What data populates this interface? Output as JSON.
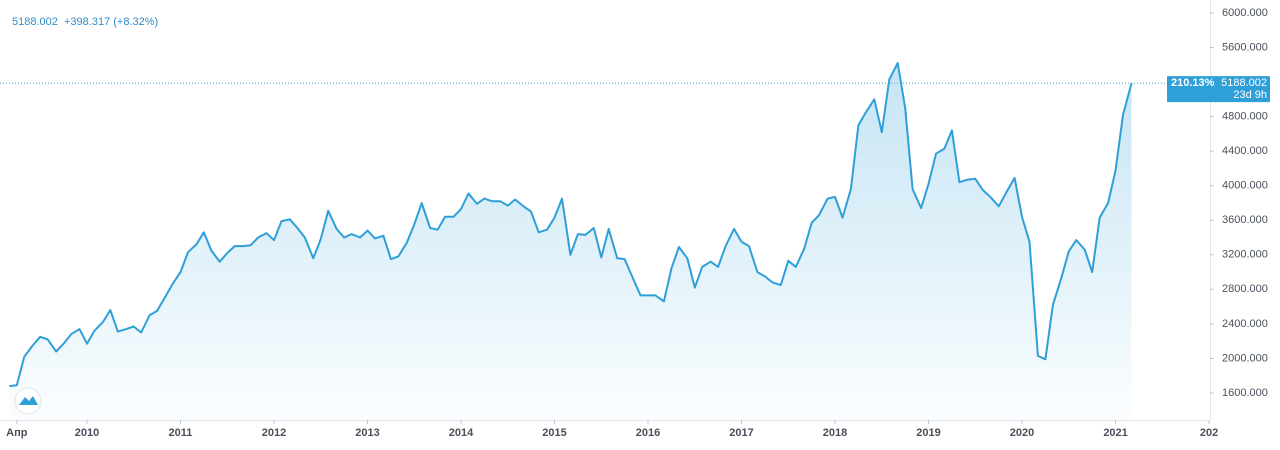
{
  "chart_data": {
    "type": "area",
    "header": {
      "price": "5188.002",
      "change": "+398.317 (+8.32%)"
    },
    "last_label": {
      "percent": "210.13%",
      "price": "5188.002",
      "countdown": "23d 9h"
    },
    "color": "#2f9fd8",
    "xlim": [
      2009.07,
      2022.01
    ],
    "ylim": [
      1287,
      6150
    ],
    "xticks": [
      {
        "value": 2009.25,
        "label": "Апр"
      },
      2010,
      2011,
      2012,
      2013,
      2014,
      2015,
      2016,
      2017,
      2018,
      2019,
      2020,
      2021,
      {
        "value": 2022,
        "label": "202"
      }
    ],
    "yticks": [
      {
        "value": 1600,
        "label": "1600.000"
      },
      {
        "value": 2000,
        "label": "2000.000"
      },
      {
        "value": 2400,
        "label": "2400.000"
      },
      {
        "value": 2800,
        "label": "2800.000"
      },
      {
        "value": 3200,
        "label": "3200.000"
      },
      {
        "value": 3600,
        "label": "3600.000"
      },
      {
        "value": 4000,
        "label": "4000.000"
      },
      {
        "value": 4400,
        "label": "4400.000"
      },
      {
        "value": 4800,
        "label": "4800.000"
      },
      {
        "value": 5200,
        "label": "5200.000"
      },
      {
        "value": 5600,
        "label": "5600.000"
      },
      {
        "value": 6000,
        "label": "6000.000"
      }
    ],
    "x": [
      2009.17,
      2009.25,
      2009.33,
      2009.42,
      2009.5,
      2009.58,
      2009.67,
      2009.75,
      2009.83,
      2009.92,
      2010,
      2010.08,
      2010.17,
      2010.25,
      2010.33,
      2010.42,
      2010.5,
      2010.58,
      2010.67,
      2010.75,
      2010.83,
      2010.92,
      2011,
      2011.08,
      2011.17,
      2011.25,
      2011.33,
      2011.42,
      2011.5,
      2011.58,
      2011.67,
      2011.75,
      2011.83,
      2011.92,
      2012,
      2012.08,
      2012.17,
      2012.25,
      2012.33,
      2012.42,
      2012.5,
      2012.58,
      2012.67,
      2012.75,
      2012.83,
      2012.92,
      2013,
      2013.08,
      2013.17,
      2013.25,
      2013.33,
      2013.42,
      2013.5,
      2013.58,
      2013.67,
      2013.75,
      2013.83,
      2013.92,
      2014,
      2014.08,
      2014.17,
      2014.25,
      2014.33,
      2014.42,
      2014.5,
      2014.58,
      2014.67,
      2014.75,
      2014.83,
      2014.92,
      2015,
      2015.08,
      2015.17,
      2015.25,
      2015.33,
      2015.42,
      2015.5,
      2015.58,
      2015.67,
      2015.75,
      2015.83,
      2015.92,
      2016,
      2016.08,
      2016.17,
      2016.25,
      2016.33,
      2016.42,
      2016.5,
      2016.58,
      2016.67,
      2016.75,
      2016.83,
      2016.92,
      2017,
      2017.08,
      2017.17,
      2017.25,
      2017.33,
      2017.42,
      2017.5,
      2017.58,
      2017.67,
      2017.75,
      2017.83,
      2017.92,
      2018,
      2018.08,
      2018.17,
      2018.25,
      2018.33,
      2018.42,
      2018.5,
      2018.58,
      2018.67,
      2018.75,
      2018.83,
      2018.92,
      2019,
      2019.08,
      2019.17,
      2019.25,
      2019.33,
      2019.42,
      2019.5,
      2019.58,
      2019.67,
      2019.75,
      2019.83,
      2019.92,
      2020,
      2020.08,
      2020.17,
      2020.25,
      2020.33,
      2020.42,
      2020.5,
      2020.58,
      2020.67,
      2020.75,
      2020.83,
      2020.92,
      2021,
      2021.08,
      2021.17
    ],
    "values": [
      1680,
      1690,
      2020,
      2150,
      2250,
      2220,
      2080,
      2170,
      2280,
      2340,
      2170,
      2320,
      2420,
      2560,
      2310,
      2340,
      2370,
      2300,
      2500,
      2550,
      2700,
      2870,
      3000,
      3230,
      3320,
      3460,
      3250,
      3120,
      3220,
      3300,
      3300,
      3310,
      3400,
      3450,
      3370,
      3590,
      3610,
      3510,
      3400,
      3160,
      3380,
      3710,
      3500,
      3400,
      3440,
      3400,
      3480,
      3390,
      3420,
      3150,
      3180,
      3340,
      3550,
      3800,
      3510,
      3490,
      3640,
      3640,
      3730,
      3910,
      3790,
      3850,
      3820,
      3820,
      3770,
      3840,
      3760,
      3700,
      3460,
      3490,
      3630,
      3850,
      3200,
      3440,
      3430,
      3510,
      3170,
      3500,
      3160,
      3150,
      2950,
      2730,
      2730,
      2730,
      2660,
      3040,
      3290,
      3160,
      2820,
      3060,
      3120,
      3060,
      3300,
      3500,
      3350,
      3300,
      3000,
      2950,
      2880,
      2850,
      3130,
      3060,
      3270,
      3570,
      3660,
      3850,
      3870,
      3630,
      3960,
      4700,
      4850,
      5000,
      4620,
      5230,
      5420,
      4900,
      3960,
      3740,
      4020,
      4370,
      4430,
      4640,
      4040,
      4070,
      4080,
      3950,
      3860,
      3760,
      3920,
      4090,
      3640,
      3350,
      2030,
      1990,
      2620,
      2930,
      3240,
      3370,
      3260,
      3000,
      3630,
      3800,
      4180,
      4820,
      5188.002
    ]
  }
}
